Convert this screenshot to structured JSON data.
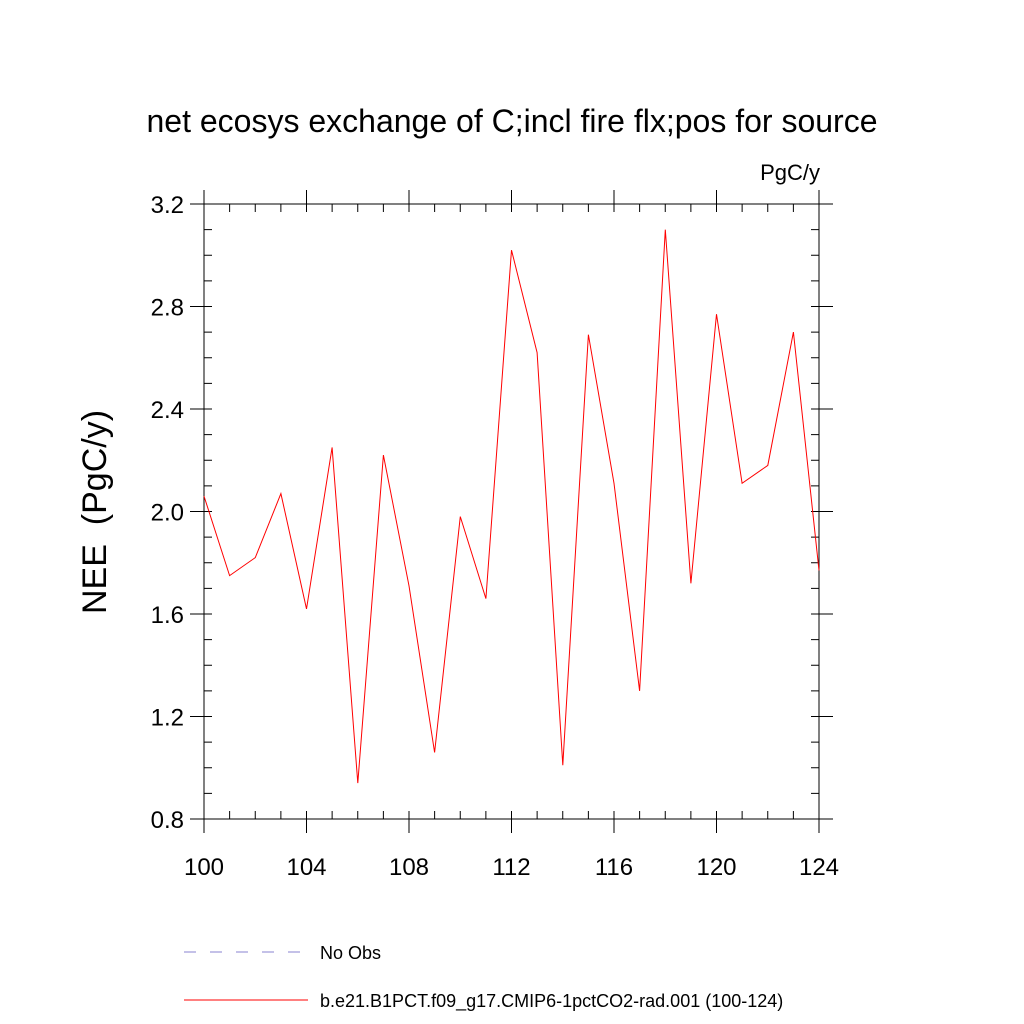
{
  "chart_data": {
    "type": "line",
    "title": "net ecosys exchange of C;incl fire flx;pos for source",
    "units_label": "PgC/y",
    "ylabel": "NEE  (PgC/y)",
    "xlabel": "",
    "xlim": [
      100,
      124
    ],
    "ylim": [
      0.8,
      3.2
    ],
    "x_major_ticks": [
      100,
      104,
      108,
      112,
      116,
      120,
      124
    ],
    "x_tick_labels": [
      "100",
      "104",
      "108",
      "112",
      "116",
      "120",
      "124"
    ],
    "x_minor_step": 1,
    "y_major_ticks": [
      0.8,
      1.2,
      1.6,
      2.0,
      2.4,
      2.8,
      3.2
    ],
    "y_tick_labels": [
      "0.8",
      "1.2",
      "1.6",
      "2.0",
      "2.4",
      "2.8",
      "3.2"
    ],
    "y_minor_step": 0.1,
    "grid": false,
    "legend_position": "bottom",
    "series": [
      {
        "name": "b.e21.B1PCT.f09_g17.CMIP6-1pctCO2-rad.001 (100-124)",
        "color": "#ff0000",
        "style": "solid",
        "x": [
          100,
          101,
          102,
          103,
          104,
          105,
          106,
          107,
          108,
          109,
          110,
          111,
          112,
          113,
          114,
          115,
          116,
          117,
          118,
          119,
          120,
          121,
          122,
          123,
          124
        ],
        "values": [
          2.06,
          1.75,
          1.82,
          2.07,
          1.62,
          2.25,
          0.94,
          2.22,
          1.71,
          1.06,
          1.98,
          1.66,
          3.02,
          2.62,
          1.01,
          2.69,
          2.11,
          1.3,
          3.1,
          1.72,
          2.77,
          2.11,
          2.18,
          2.7,
          1.77
        ]
      }
    ],
    "legend": [
      {
        "label": "No Obs",
        "color": "#8a83d0",
        "style": "dashed"
      },
      {
        "label": "b.e21.B1PCT.f09_g17.CMIP6-1pctCO2-rad.001 (100-124)",
        "color": "#ff0000",
        "style": "solid"
      }
    ]
  }
}
